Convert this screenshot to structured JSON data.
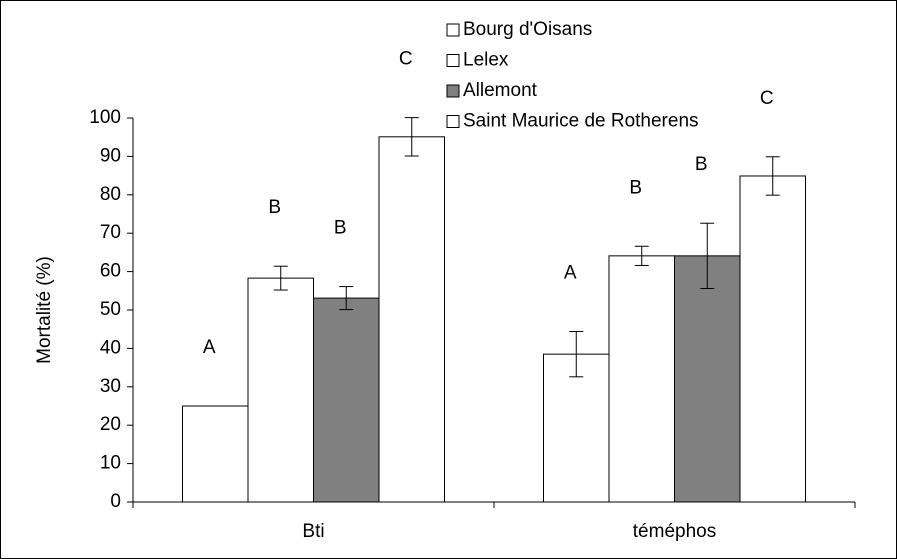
{
  "chart_data": {
    "type": "bar",
    "y_label": "Mortalité (%)",
    "categories": [
      "Bti",
      "téméphos"
    ],
    "ylim": [
      0,
      100
    ],
    "yticks": [
      0,
      10,
      20,
      30,
      40,
      50,
      60,
      70,
      80,
      90,
      100
    ],
    "legend": "top",
    "series": [
      {
        "name": "Bourg d'Oisans",
        "color": "#ffffff",
        "values": [
          25,
          38.5
        ],
        "errors": [
          null,
          5.9
        ],
        "labels": [
          "A",
          "A"
        ]
      },
      {
        "name": "Lelex",
        "color": "#ffffff",
        "values": [
          58.3,
          64.1
        ],
        "errors": [
          3.1,
          2.5
        ],
        "labels": [
          "B",
          "B"
        ]
      },
      {
        "name": "Allemont",
        "color": "#808080",
        "values": [
          53.1,
          64.1
        ],
        "errors": [
          3,
          8.5
        ],
        "labels": [
          "B",
          "B"
        ]
      },
      {
        "name": "Saint Maurice de Rotherens",
        "color": "#ffffff",
        "values": [
          95.1,
          84.9
        ],
        "errors": [
          5,
          5
        ],
        "labels": [
          "C",
          "C"
        ]
      }
    ]
  }
}
